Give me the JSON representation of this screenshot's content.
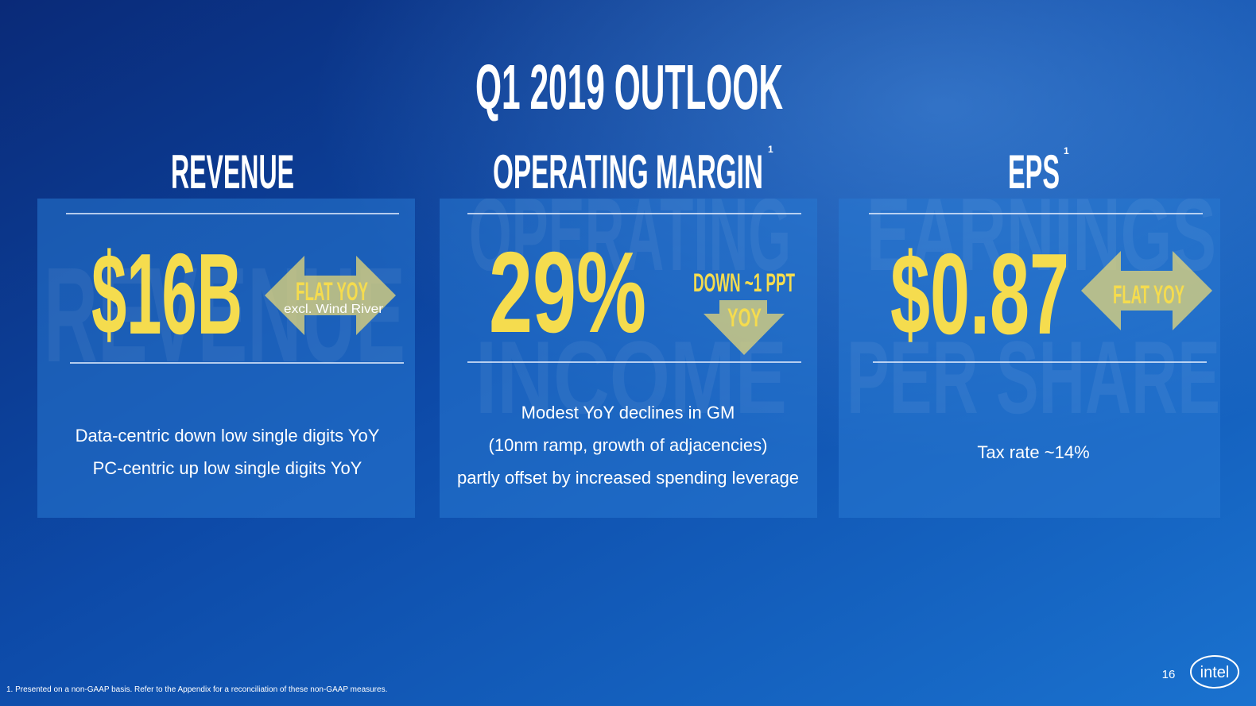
{
  "title": "Q1 2019 OUTLOOK",
  "panels": [
    {
      "heading": "REVENUE",
      "watermark": [
        "REVENUE"
      ],
      "value": "$16B",
      "indicator": [
        "FLAT YOY",
        "excl. Wind River"
      ],
      "description": [
        "Data-centric down low single digits YoY",
        "PC-centric up low single digits YoY"
      ]
    },
    {
      "heading": "OPERATING MARGIN",
      "heading_note": "1",
      "watermark": [
        "OPERATING",
        "INCOME"
      ],
      "value": "29%",
      "indicator": [
        "DOWN ~1 PPT",
        "YOY"
      ],
      "description": [
        "Modest YoY declines in GM",
        "(10nm ramp, growth of adjacencies)",
        "partly offset by increased spending leverage"
      ]
    },
    {
      "heading": "EPS",
      "heading_note": "1",
      "watermark": [
        "EARNINGS",
        "PER SHARE"
      ],
      "value": "$0.87",
      "indicator": [
        "FLAT YOY"
      ],
      "description": [
        "Tax rate ~14%"
      ]
    }
  ],
  "footnote": "1. Presented on a non-GAAP basis. Refer to the Appendix for a reconciliation of these non-GAAP measures.",
  "page_number": "16",
  "logo": "intel"
}
